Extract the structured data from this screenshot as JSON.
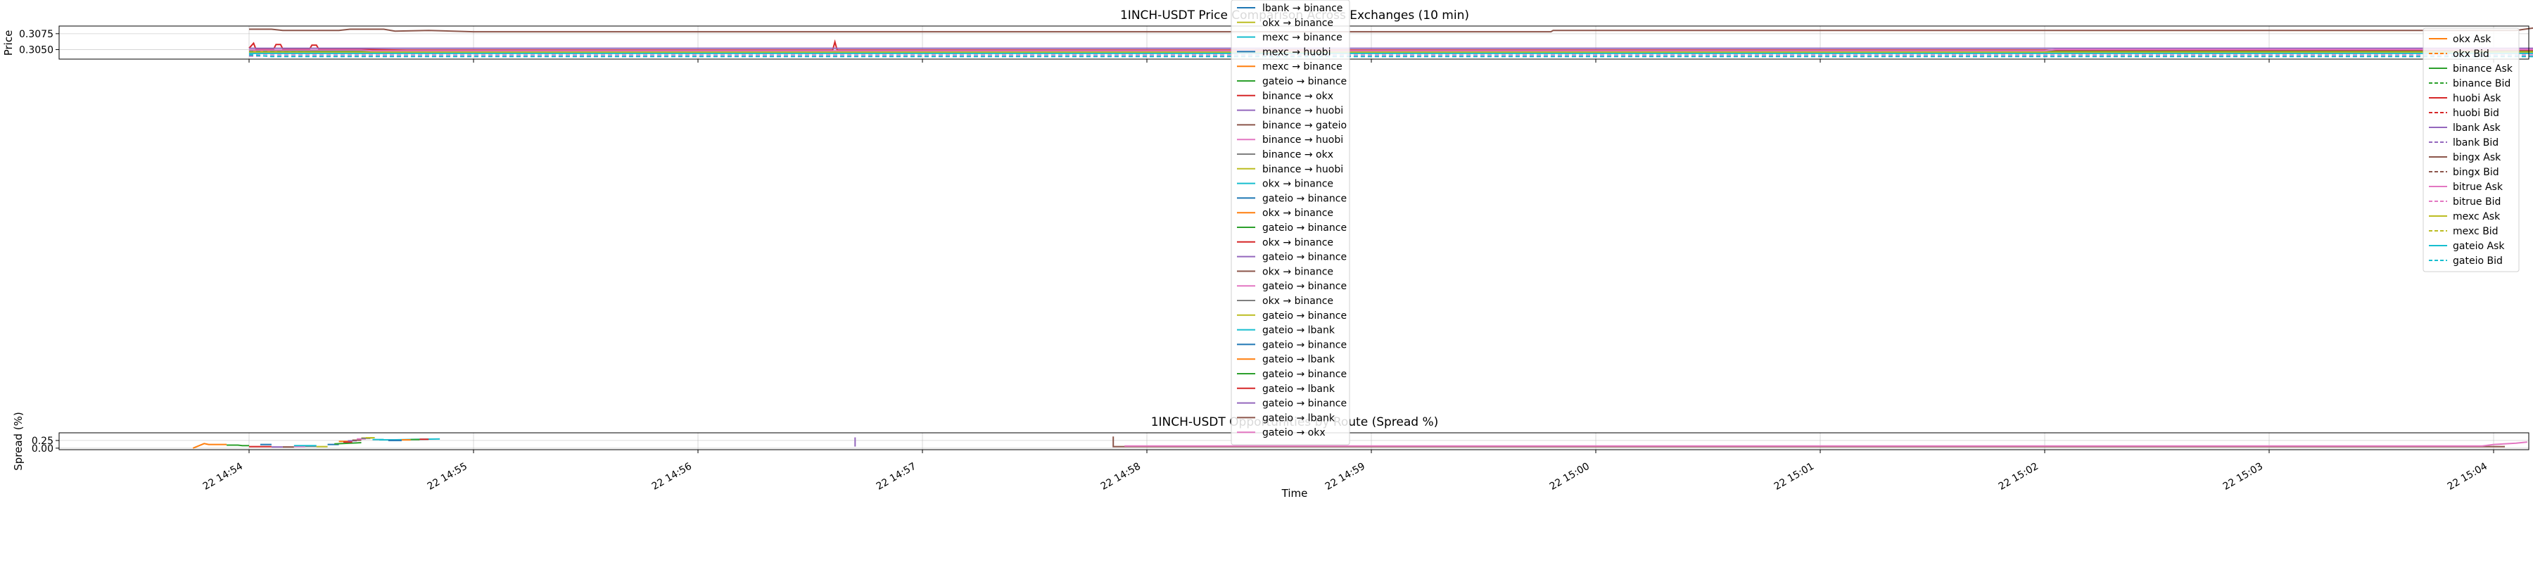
{
  "chart_data": [
    {
      "type": "line",
      "title": "1INCH-USDT Price Comparison Across Exchanges (10 min)",
      "ylabel": "Price",
      "xlabel": "",
      "x_ticks": [
        "22 14:54",
        "22 14:55",
        "22 14:56",
        "22 14:57",
        "22 14:58",
        "22 14:59",
        "22 15:00",
        "22 15:01",
        "22 15:02",
        "22 15:03",
        "22 15:04"
      ],
      "y_ticks": [
        "0.3050",
        "0.3075"
      ],
      "ylim": [
        0.3035,
        0.3087
      ],
      "grid": true,
      "legend_position": "right",
      "series": [
        {
          "name": "okx Ask",
          "color": "#ff7f0e",
          "style": "solid",
          "x": [
            0.0,
            10.2
          ],
          "y": [
            0.3048,
            0.3048
          ]
        },
        {
          "name": "okx Bid",
          "color": "#ff7f0e",
          "style": "dashed",
          "x": [
            0.0,
            10.2
          ],
          "y": [
            0.3046,
            0.3046
          ]
        },
        {
          "name": "binance Ask",
          "color": "#2ca02c",
          "style": "solid",
          "x": [
            0.0,
            0.5,
            0.7,
            10.2
          ],
          "y": [
            0.3049,
            0.3047,
            0.3047,
            0.3047
          ]
        },
        {
          "name": "binance Bid",
          "color": "#2ca02c",
          "style": "dashed",
          "x": [
            0.0,
            0.5,
            0.7,
            10.2
          ],
          "y": [
            0.3047,
            0.3045,
            0.3045,
            0.3045
          ]
        },
        {
          "name": "huobi Ask",
          "color": "#d62728",
          "style": "solid",
          "x": [
            0.0,
            0.02,
            0.03,
            0.11,
            0.12,
            0.14,
            0.15,
            0.27,
            0.28,
            0.3,
            0.31,
            0.4,
            0.5,
            0.7,
            1.0,
            2.6,
            2.61,
            2.62,
            4.0,
            10.2
          ],
          "y": [
            0.3052,
            0.306,
            0.3051,
            0.3051,
            0.3058,
            0.3058,
            0.3051,
            0.3051,
            0.3057,
            0.3057,
            0.3051,
            0.305,
            0.305,
            0.3049,
            0.3049,
            0.3049,
            0.3062,
            0.3049,
            0.3049,
            0.3049
          ]
        },
        {
          "name": "huobi Bid",
          "color": "#d62728",
          "style": "dashed",
          "x": [
            0.0,
            10.2
          ],
          "y": [
            0.3045,
            0.3045
          ]
        },
        {
          "name": "lbank Ask",
          "color": "#9467bd",
          "style": "solid",
          "x": [
            0.0,
            10.2
          ],
          "y": [
            0.3052,
            0.3052
          ]
        },
        {
          "name": "lbank Bid",
          "color": "#9467bd",
          "style": "dashed",
          "x": [
            0.0,
            10.2
          ],
          "y": [
            0.304,
            0.304
          ]
        },
        {
          "name": "bingx Ask",
          "color": "#8c564b",
          "style": "solid",
          "x": [
            0.0,
            0.1,
            0.15,
            0.4,
            0.45,
            0.6,
            0.65,
            0.8,
            1.0,
            5.0,
            5.8,
            5.81,
            10.1,
            10.2
          ],
          "y": [
            0.3082,
            0.3082,
            0.308,
            0.308,
            0.3082,
            0.3082,
            0.3079,
            0.308,
            0.3078,
            0.3078,
            0.3078,
            0.308,
            0.308,
            0.3085
          ]
        },
        {
          "name": "bingx Bid",
          "color": "#8c564b",
          "style": "dashed",
          "x": [
            0.0,
            10.2
          ],
          "y": [
            0.3044,
            0.3044
          ]
        },
        {
          "name": "bitrue Ask",
          "color": "#e377c2",
          "style": "solid",
          "x": [
            0.0,
            0.5,
            0.55,
            8.0,
            8.05,
            10.2
          ],
          "y": [
            0.3049,
            0.3049,
            0.3048,
            0.3048,
            0.305,
            0.305
          ]
        },
        {
          "name": "bitrue Bid",
          "color": "#e377c2",
          "style": "dashed",
          "x": [
            0.0,
            10.2
          ],
          "y": [
            0.3043,
            0.3043
          ]
        },
        {
          "name": "mexc Ask",
          "color": "#bcbd22",
          "style": "solid",
          "x": [
            0.0,
            10.2
          ],
          "y": [
            0.3046,
            0.3046
          ]
        },
        {
          "name": "mexc Bid",
          "color": "#bcbd22",
          "style": "dashed",
          "x": [
            0.0,
            10.2
          ],
          "y": [
            0.3045,
            0.3045
          ]
        },
        {
          "name": "gateio Ask",
          "color": "#17becf",
          "style": "solid",
          "x": [
            0.0,
            10.2
          ],
          "y": [
            0.3044,
            0.3044
          ]
        },
        {
          "name": "gateio Bid",
          "color": "#17becf",
          "style": "dashed",
          "x": [
            0.0,
            0.1,
            10.2
          ],
          "y": [
            0.3042,
            0.3039,
            0.3039
          ]
        }
      ]
    },
    {
      "type": "line",
      "title": "1INCH-USDT Opportunities by Route (Spread %)",
      "ylabel": "Spread (%)",
      "xlabel": "Time",
      "x_ticks": [
        "22 14:54",
        "22 14:55",
        "22 14:56",
        "22 14:57",
        "22 14:58",
        "22 14:59",
        "22 15:00",
        "22 15:01",
        "22 15:02",
        "22 15:03",
        "22 15:04"
      ],
      "y_ticks": [
        "0.00",
        "0.25"
      ],
      "ylim": [
        -0.05,
        0.5
      ],
      "grid": true,
      "legend_position": "center, overflowing above the top panel",
      "series": [
        {
          "name": "lbank → binance",
          "color": "#1f77b4",
          "x": [
            0.05,
            0.1
          ],
          "y": [
            0.12,
            0.12
          ]
        },
        {
          "name": "okx → binance",
          "color": "#bcbd22",
          "x": [
            0.5,
            0.55
          ],
          "y": [
            0.33,
            0.33
          ]
        },
        {
          "name": "mexc → binance",
          "color": "#17becf",
          "x": [
            0.55,
            0.6
          ],
          "y": [
            0.28,
            0.28
          ]
        },
        {
          "name": "mexc → huobi",
          "color": "#1f77b4",
          "x": [
            0.6,
            0.63
          ],
          "y": [
            0.27,
            0.27
          ]
        },
        {
          "name": "mexc → binance",
          "color": "#ff7f0e",
          "x": [
            -0.25,
            -0.2,
            -0.18,
            -0.1
          ],
          "y": [
            0.0,
            0.15,
            0.12,
            0.12
          ]
        },
        {
          "name": "gateio → binance",
          "color": "#2ca02c",
          "x": [
            -0.1,
            -0.05,
            -0.03,
            0.0
          ],
          "y": [
            0.1,
            0.1,
            0.08,
            0.08
          ]
        },
        {
          "name": "binance → okx",
          "color": "#d62728",
          "x": [
            0.0,
            0.1
          ],
          "y": [
            0.05,
            0.05
          ]
        },
        {
          "name": "binance → huobi",
          "color": "#9467bd",
          "x": [
            0.1,
            0.15
          ],
          "y": [
            0.04,
            0.04
          ]
        },
        {
          "name": "binance → gateio",
          "color": "#8c564b",
          "x": [
            0.15,
            0.2
          ],
          "y": [
            0.04,
            0.04
          ]
        },
        {
          "name": "binance → huobi",
          "color": "#e377c2",
          "x": [
            0.2,
            0.25
          ],
          "y": [
            0.05,
            0.05
          ]
        },
        {
          "name": "binance → okx",
          "color": "#7f7f7f",
          "x": [
            0.25,
            0.3
          ],
          "y": [
            0.06,
            0.06
          ]
        },
        {
          "name": "binance → huobi",
          "color": "#bcbd22",
          "x": [
            0.3,
            0.35
          ],
          "y": [
            0.05,
            0.05
          ]
        },
        {
          "name": "okx → binance",
          "color": "#17becf",
          "x": [
            0.2,
            0.3
          ],
          "y": [
            0.08,
            0.08
          ]
        },
        {
          "name": "gateio → binance",
          "color": "#1f77b4",
          "x": [
            0.35,
            0.4
          ],
          "y": [
            0.12,
            0.12
          ]
        },
        {
          "name": "okx → binance",
          "color": "#ff7f0e",
          "x": [
            0.4,
            0.45
          ],
          "y": [
            0.22,
            0.22
          ]
        },
        {
          "name": "gateio → binance",
          "color": "#2ca02c",
          "x": [
            0.38,
            0.45,
            0.5
          ],
          "y": [
            0.14,
            0.16,
            0.18
          ]
        },
        {
          "name": "okx → binance",
          "color": "#d62728",
          "x": [
            0.42,
            0.46
          ],
          "y": [
            0.2,
            0.2
          ]
        },
        {
          "name": "gateio → binance",
          "color": "#9467bd",
          "x": [
            0.44,
            0.48
          ],
          "y": [
            0.24,
            0.24
          ]
        },
        {
          "name": "okx → binance",
          "color": "#8c564b",
          "x": [
            0.46,
            0.5
          ],
          "y": [
            0.26,
            0.26
          ]
        },
        {
          "name": "gateio → binance",
          "color": "#e377c2",
          "x": [
            0.48,
            0.52
          ],
          "y": [
            0.3,
            0.3
          ]
        },
        {
          "name": "okx → binance",
          "color": "#7f7f7f",
          "x": [
            0.5,
            0.54
          ],
          "y": [
            0.32,
            0.32
          ]
        },
        {
          "name": "gateio → binance",
          "color": "#bcbd22",
          "x": [
            0.52,
            0.56
          ],
          "y": [
            0.34,
            0.34
          ]
        },
        {
          "name": "gateio → lbank",
          "color": "#17becf",
          "x": [
            0.58,
            0.65,
            0.75,
            0.85
          ],
          "y": [
            0.27,
            0.27,
            0.29,
            0.3
          ]
        },
        {
          "name": "gateio → binance",
          "color": "#1f77b4",
          "x": [
            0.62,
            0.68
          ],
          "y": [
            0.25,
            0.25
          ]
        },
        {
          "name": "gateio → lbank",
          "color": "#ff7f0e",
          "x": [
            0.68,
            0.72
          ],
          "y": [
            0.27,
            0.27
          ]
        },
        {
          "name": "gateio → binance",
          "color": "#2ca02c",
          "x": [
            0.72,
            0.76
          ],
          "y": [
            0.28,
            0.28
          ]
        },
        {
          "name": "gateio → lbank",
          "color": "#d62728",
          "x": [
            0.76,
            0.8
          ],
          "y": [
            0.29,
            0.29
          ]
        },
        {
          "name": "gateio → binance",
          "color": "#9467bd",
          "x": [
            2.7,
            2.7
          ],
          "y": [
            0.05,
            0.35
          ]
        },
        {
          "name": "gateio → lbank",
          "color": "#8c564b",
          "x": [
            3.85,
            3.85,
            3.9,
            10.05
          ],
          "y": [
            0.38,
            0.05,
            0.05,
            0.05
          ]
        },
        {
          "name": "gateio → okx",
          "color": "#e377c2",
          "x": [
            3.9,
            9.95,
            10.0,
            10.1,
            10.15
          ],
          "y": [
            0.07,
            0.07,
            0.12,
            0.16,
            0.2
          ]
        }
      ]
    }
  ]
}
